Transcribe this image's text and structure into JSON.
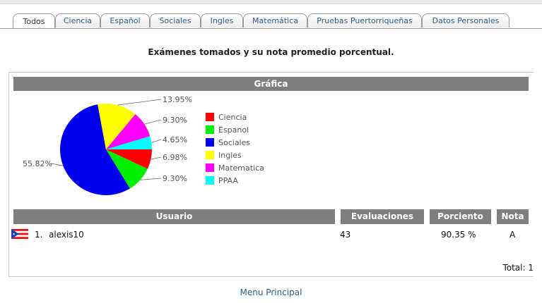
{
  "tabs": [
    {
      "label": "Todos",
      "active": true
    },
    {
      "label": "Ciencia"
    },
    {
      "label": "Español"
    },
    {
      "label": "Sociales"
    },
    {
      "label": "Ingles"
    },
    {
      "label": "Matemática"
    },
    {
      "label": "Pruebas Puertorriqueñas"
    },
    {
      "label": "Datos Personales"
    }
  ],
  "heading": "Exámenes tomados y su nota promedio porcentual.",
  "chart_section_title": "Gráfica",
  "chart_data": {
    "type": "pie",
    "labels": [
      "Ciencia",
      "Espanol",
      "Sociales",
      "Ingles",
      "Matematica",
      "PPAA"
    ],
    "values": [
      6.98,
      9.3,
      55.82,
      13.95,
      9.3,
      4.65
    ],
    "value_labels": [
      "6.98%",
      "9.30%",
      "55.82%",
      "13.95%",
      "9.30%",
      "4.65%"
    ],
    "colors": [
      "#ff0000",
      "#00ee00",
      "#0000ee",
      "#ffff00",
      "#ff00ff",
      "#00ffff"
    ],
    "legend_position": "right"
  },
  "table": {
    "headers": {
      "usuario": "Usuario",
      "evaluaciones": "Evaluaciones",
      "porciento": "Porciento",
      "nota": "Nota"
    },
    "rows": [
      {
        "index": "1.",
        "user": "alexis10",
        "evaluaciones": "43",
        "porciento": "90.35 %",
        "nota": "A"
      }
    ],
    "total": "Total: 1"
  },
  "footer": {
    "menu_link": "Menu Principal"
  }
}
